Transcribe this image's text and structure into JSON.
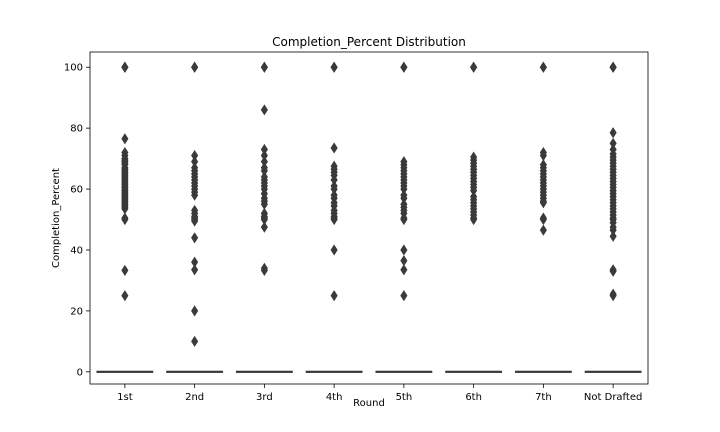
{
  "chart_data": {
    "type": "boxplot",
    "title": "Completion_Percent Distribution",
    "xlabel": "Round",
    "ylabel": "Completion_Percent",
    "ylim": [
      -4,
      105
    ],
    "yticks": [
      0,
      20,
      40,
      60,
      80,
      100
    ],
    "categories": [
      "1st",
      "2nd",
      "3rd",
      "4th",
      "5th",
      "6th",
      "7th",
      "Not Drafted"
    ],
    "grid": false,
    "box_color": "#3a3a3a",
    "groups": [
      {
        "category": "1st",
        "median": 0,
        "q1": 0,
        "q3": 0,
        "whisker_low": 0,
        "whisker_high": 0,
        "outliers": [
          100,
          100,
          100,
          76.5,
          72,
          71,
          70,
          69.5,
          69,
          68.5,
          68,
          67,
          66.5,
          66,
          65.5,
          65,
          64.5,
          64,
          63.5,
          63,
          62.5,
          62,
          61.5,
          61,
          60.5,
          60,
          59.5,
          59,
          58.5,
          58,
          57.5,
          57,
          56.5,
          56,
          55.5,
          55,
          54.5,
          54,
          53.5,
          50.5,
          50,
          33.3,
          25
        ]
      },
      {
        "category": "2nd",
        "median": 0,
        "q1": 0,
        "q3": 0,
        "whisker_low": 0,
        "whisker_high": 0,
        "outliers": [
          100,
          100,
          71,
          69,
          67,
          66,
          65,
          64,
          63,
          62,
          61,
          60,
          59,
          58,
          53,
          52,
          51,
          50.5,
          50,
          49.5,
          44,
          36,
          33.5,
          20,
          10
        ]
      },
      {
        "category": "3rd",
        "median": 0,
        "q1": 0,
        "q3": 0,
        "whisker_low": 0,
        "whisker_high": 0,
        "outliers": [
          100,
          100,
          86,
          73,
          71,
          69,
          67,
          66,
          64,
          63,
          62,
          61,
          60,
          58.5,
          57,
          56,
          55,
          52,
          51,
          50.5,
          50,
          47.5,
          34,
          33.3
        ]
      },
      {
        "category": "4th",
        "median": 0,
        "q1": 0,
        "q3": 0,
        "whisker_low": 0,
        "whisker_high": 0,
        "outliers": [
          100,
          100,
          73.5,
          67.5,
          66.5,
          65.5,
          64.5,
          63,
          61,
          60,
          58,
          57,
          55.5,
          54.5,
          53,
          52,
          51,
          50.5,
          50,
          40,
          25
        ]
      },
      {
        "category": "5th",
        "median": 0,
        "q1": 0,
        "q3": 0,
        "whisker_low": 0,
        "whisker_high": 0,
        "outliers": [
          100,
          100,
          69,
          68,
          67,
          66,
          65,
          64,
          63,
          62,
          61,
          60,
          58,
          57,
          55,
          54,
          53,
          52,
          50.5,
          50,
          40,
          36.5,
          33.5,
          25
        ]
      },
      {
        "category": "6th",
        "median": 0,
        "q1": 0,
        "q3": 0,
        "whisker_low": 0,
        "whisker_high": 0,
        "outliers": [
          100,
          100,
          70.5,
          69.5,
          68.5,
          67.5,
          66.5,
          65.5,
          64.5,
          63.5,
          62.5,
          61.5,
          60.5,
          59.5,
          57.5,
          56.5,
          55.5,
          54.5,
          53.5,
          52.5,
          51.5,
          50.5,
          50
        ]
      },
      {
        "category": "7th",
        "median": 0,
        "q1": 0,
        "q3": 0,
        "whisker_low": 0,
        "whisker_high": 0,
        "outliers": [
          100,
          100,
          72,
          71,
          68,
          67,
          66,
          65,
          64,
          63,
          62,
          61,
          60,
          59,
          58,
          57,
          56,
          55.5,
          50.5,
          50,
          46.5
        ]
      },
      {
        "category": "Not Drafted",
        "median": 0,
        "q1": 0,
        "q3": 0,
        "whisker_low": 0,
        "whisker_high": 0,
        "outliers": [
          100,
          100,
          100,
          78.5,
          75,
          73,
          71.5,
          70.5,
          69.5,
          68.5,
          67.5,
          66.5,
          65.5,
          64.5,
          63.5,
          62.5,
          61.5,
          60.5,
          59.5,
          58.5,
          57.5,
          56.5,
          55.5,
          54.5,
          53.5,
          52.5,
          51.5,
          50.5,
          50,
          49,
          47.5,
          46.5,
          44.5,
          33.5,
          33,
          25.5,
          25
        ]
      }
    ]
  }
}
